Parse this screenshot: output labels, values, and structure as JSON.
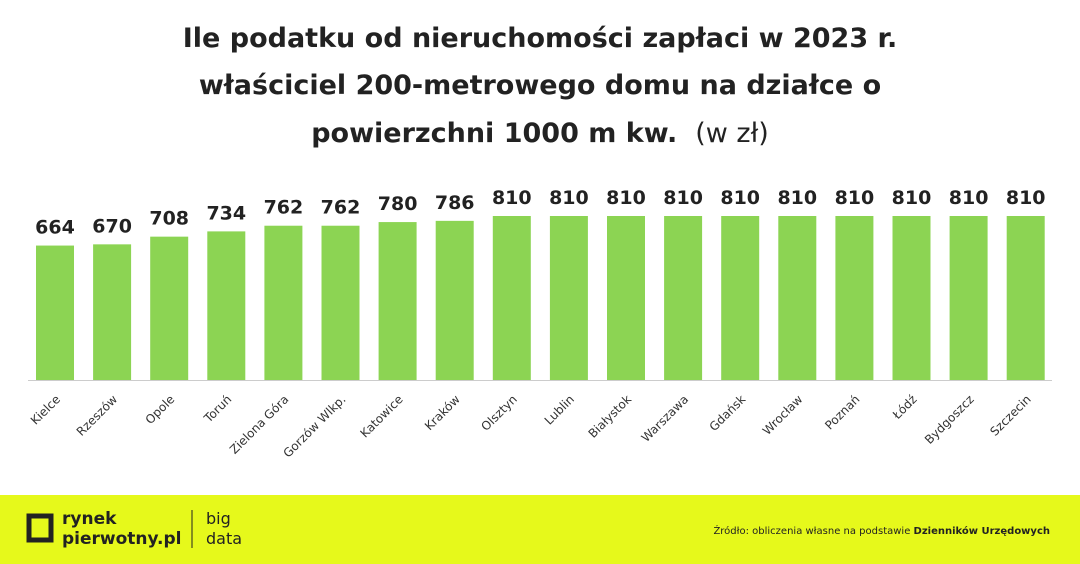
{
  "chart_data": {
    "type": "bar",
    "title": [
      "Ile podatku od nieruchomości zapłaci w 2023 r.",
      "właściciel 200-metrowego domu na działce o",
      "powierzchni 1000 m kw."
    ],
    "unit": "(w zł)",
    "categories": [
      "Kielce",
      "Rzeszów",
      "Opole",
      "Toruń",
      "Zielona Góra",
      "Gorzów Wlkp.",
      "Katowice",
      "Kraków",
      "Olsztyn",
      "Lublin",
      "Białystok",
      "Warszawa",
      "Gdańsk",
      "Wrocław",
      "Poznań",
      "Łódź",
      "Bydgoszcz",
      "Szczecin"
    ],
    "values": [
      664,
      670,
      708,
      734,
      762,
      762,
      780,
      786,
      810,
      810,
      810,
      810,
      810,
      810,
      810,
      810,
      810,
      810
    ],
    "color": "#8cd453"
  },
  "footer": {
    "logo_top": "rynek",
    "logo_bottom": "pierwotny.pl",
    "tag_top": "big",
    "tag_bottom": "data",
    "source": "Źródło: obliczenia własne na podstawie ",
    "source_bold": "Dzienników Urzędowych"
  }
}
